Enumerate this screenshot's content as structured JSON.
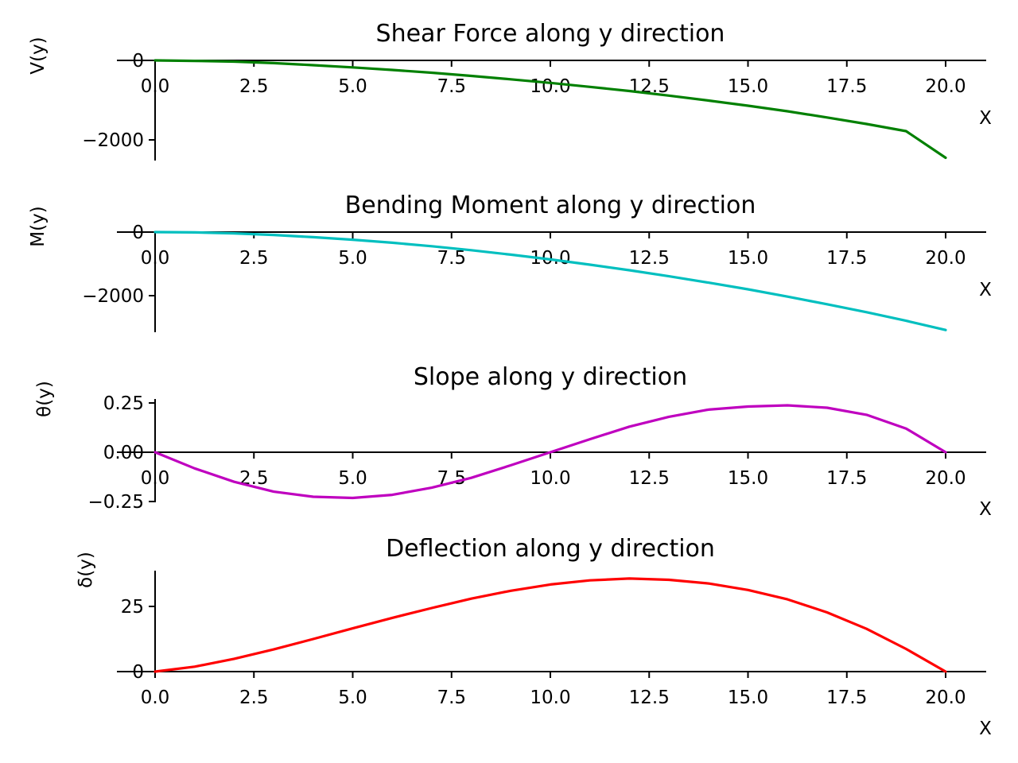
{
  "chart_data": [
    {
      "type": "line",
      "title": "Shear Force along y direction",
      "xlabel": "X",
      "ylabel": "V(y)",
      "xlim": [
        0,
        21
      ],
      "ylim": [
        -2550,
        60
      ],
      "xticks": [
        0,
        2.5,
        5,
        7.5,
        10,
        12.5,
        15,
        17.5,
        20
      ],
      "xtick_labels": [
        "0.0",
        "2.5",
        "5.0",
        "7.5",
        "10.0",
        "12.5",
        "15.0",
        "17.5",
        "20.0"
      ],
      "yticks": [
        0,
        -2000
      ],
      "ytick_labels": [
        "0",
        "−2000"
      ],
      "color": "#008000",
      "grid": false,
      "series": [
        {
          "x": [
            0,
            1,
            2,
            3,
            4,
            5,
            6,
            7,
            8,
            9,
            10,
            11,
            12,
            13,
            14,
            15,
            16,
            17,
            18,
            19,
            20
          ],
          "y": [
            0,
            -12,
            -30,
            -68,
            -120,
            -175,
            -240,
            -310,
            -390,
            -475,
            -565,
            -665,
            -770,
            -885,
            -1010,
            -1140,
            -1280,
            -1435,
            -1600,
            -1780,
            -2450
          ]
        }
      ]
    },
    {
      "type": "line",
      "title": "Bending Moment along y direction",
      "xlabel": "X",
      "ylabel": "M(y)",
      "xlim": [
        0,
        21
      ],
      "ylim": [
        -3200,
        60
      ],
      "xticks": [
        0,
        2.5,
        5,
        7.5,
        10,
        12.5,
        15,
        17.5,
        20
      ],
      "xtick_labels": [
        "0.0",
        "2.5",
        "5.0",
        "7.5",
        "10.0",
        "12.5",
        "15.0",
        "17.5",
        "20.0"
      ],
      "yticks": [
        0,
        -2000
      ],
      "ytick_labels": [
        "0",
        "−2000"
      ],
      "color": "#00bfbf",
      "grid": false,
      "series": [
        {
          "x": [
            0,
            1,
            2,
            3,
            4,
            5,
            6,
            7,
            8,
            9,
            10,
            11,
            12,
            13,
            14,
            15,
            16,
            17,
            18,
            19,
            20
          ],
          "y": [
            0,
            -10,
            -40,
            -90,
            -160,
            -240,
            -335,
            -445,
            -570,
            -710,
            -860,
            -1025,
            -1200,
            -1390,
            -1590,
            -1800,
            -2030,
            -2270,
            -2520,
            -2790,
            -3080
          ]
        }
      ]
    },
    {
      "type": "line",
      "title": "Slope along y direction",
      "xlabel": "X",
      "ylabel": "θ(y)",
      "xlim": [
        0,
        21
      ],
      "ylim": [
        -0.26,
        0.27
      ],
      "xticks": [
        0,
        2.5,
        5,
        7.5,
        10,
        12.5,
        15,
        17.5,
        20
      ],
      "xtick_labels": [
        "0.0",
        "2.5",
        "5.0",
        "7.5",
        "10.0",
        "12.5",
        "15.0",
        "17.5",
        "20.0"
      ],
      "yticks": [
        0.25,
        0,
        -0.25
      ],
      "ytick_labels": [
        "0.25",
        "0.00",
        "−0.25"
      ],
      "color": "#bf00bf",
      "grid": false,
      "series": [
        {
          "x": [
            0,
            1,
            2,
            3,
            4,
            5,
            6,
            7,
            8,
            9,
            10,
            11,
            12,
            13,
            14,
            15,
            16,
            17,
            18,
            19,
            20
          ],
          "y": [
            0,
            -0.082,
            -0.15,
            -0.2,
            -0.226,
            -0.232,
            -0.216,
            -0.18,
            -0.13,
            -0.066,
            0,
            0.066,
            0.13,
            0.18,
            0.216,
            0.232,
            0.238,
            0.226,
            0.19,
            0.12,
            0
          ]
        }
      ]
    },
    {
      "type": "line",
      "title": "Deflection along y direction",
      "xlabel": "X",
      "ylabel": "δ(y)",
      "xlim": [
        0,
        21
      ],
      "ylim": [
        0,
        39
      ],
      "xticks": [
        0,
        2.5,
        5,
        7.5,
        10,
        12.5,
        15,
        17.5,
        20
      ],
      "xtick_labels": [
        "0.0",
        "2.5",
        "5.0",
        "7.5",
        "10.0",
        "12.5",
        "15.0",
        "17.5",
        "20.0"
      ],
      "yticks": [
        25,
        0
      ],
      "ytick_labels": [
        "25",
        "0"
      ],
      "color": "#ff0000",
      "grid": false,
      "series": [
        {
          "x": [
            0,
            1,
            2,
            3,
            4,
            5,
            6,
            7,
            8,
            9,
            10,
            11,
            12,
            13,
            14,
            15,
            16,
            17,
            18,
            19,
            20
          ],
          "y": [
            0,
            1.9,
            4.9,
            8.5,
            12.5,
            16.6,
            20.6,
            24.4,
            28.0,
            31.0,
            33.4,
            35.0,
            35.7,
            35.2,
            33.8,
            31.3,
            27.7,
            22.7,
            16.4,
            8.7,
            0
          ]
        }
      ]
    }
  ]
}
